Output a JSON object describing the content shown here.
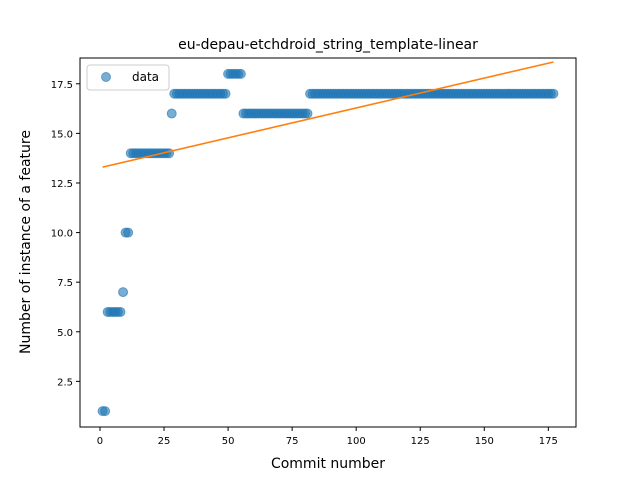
{
  "chart_data": {
    "type": "scatter",
    "title": "eu-depau-etchdroid_string_template-linear",
    "xlabel": "Commit number",
    "ylabel": "Number of instance of a feature",
    "xlim": [
      -7.8,
      185.8
    ],
    "ylim": [
      0.2,
      18.8
    ],
    "xticks": [
      0,
      25,
      50,
      75,
      100,
      125,
      150,
      175
    ],
    "yticks": [
      2.5,
      5.0,
      7.5,
      10.0,
      12.5,
      15.0,
      17.5
    ],
    "xtick_labels": [
      "0",
      "25",
      "50",
      "75",
      "100",
      "125",
      "150",
      "175"
    ],
    "ytick_labels": [
      "2.5",
      "5.0",
      "7.5",
      "10.0",
      "12.5",
      "15.0",
      "17.5"
    ],
    "grid": false,
    "legend": {
      "position": "top-left",
      "entries": [
        "data"
      ]
    },
    "colors": {
      "data": "#1f77b4",
      "fit": "#ff7f0e"
    },
    "series": [
      {
        "name": "data",
        "kind": "scatter",
        "segments": [
          {
            "from": 1,
            "to": 2,
            "y": 1
          },
          {
            "from": 3,
            "to": 8,
            "y": 6
          },
          {
            "from": 9,
            "to": 9,
            "y": 7
          },
          {
            "from": 10,
            "to": 11,
            "y": 10
          },
          {
            "from": 12,
            "to": 27,
            "y": 14
          },
          {
            "from": 28,
            "to": 28,
            "y": 16
          },
          {
            "from": 29,
            "to": 49,
            "y": 17
          },
          {
            "from": 50,
            "to": 55,
            "y": 18
          },
          {
            "from": 56,
            "to": 81,
            "y": 16
          },
          {
            "from": 82,
            "to": 177,
            "y": 17
          }
        ]
      },
      {
        "kind": "line",
        "x": [
          1,
          177
        ],
        "y": [
          13.3,
          18.6
        ]
      }
    ]
  }
}
